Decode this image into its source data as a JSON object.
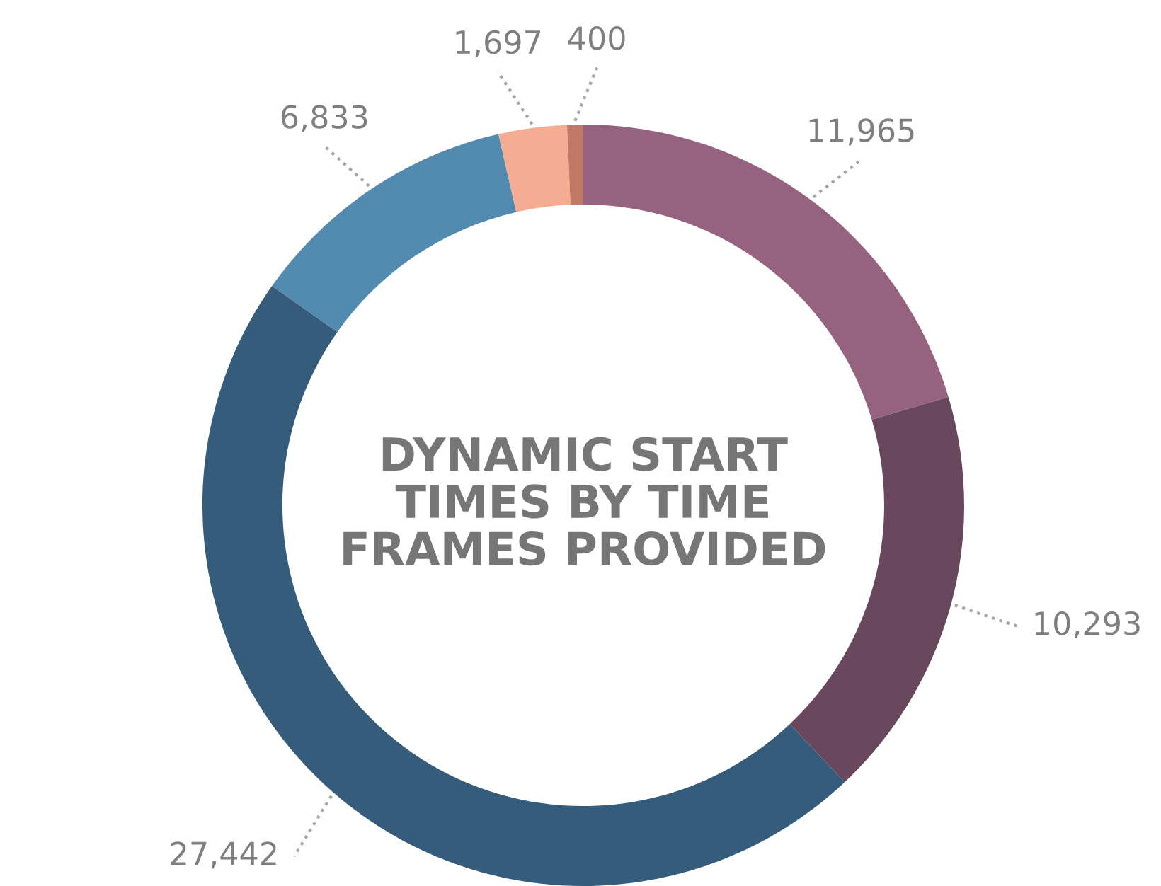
{
  "chart_data": {
    "type": "donut",
    "title": "DYNAMIC START\nTIMES BY TIME\nFRAMES PROVIDED",
    "categories": [
      null,
      null,
      null,
      null,
      null,
      null
    ],
    "values": [
      11965,
      10293,
      27442,
      6833,
      1697,
      400
    ],
    "value_labels": [
      "11,965",
      "10,293",
      "27,442",
      "6,833",
      "1,697",
      "400"
    ],
    "colors": [
      "#95637f",
      "#69475c",
      "#355c7a",
      "#528ab0",
      "#f4ad93",
      "#c27a68"
    ]
  }
}
